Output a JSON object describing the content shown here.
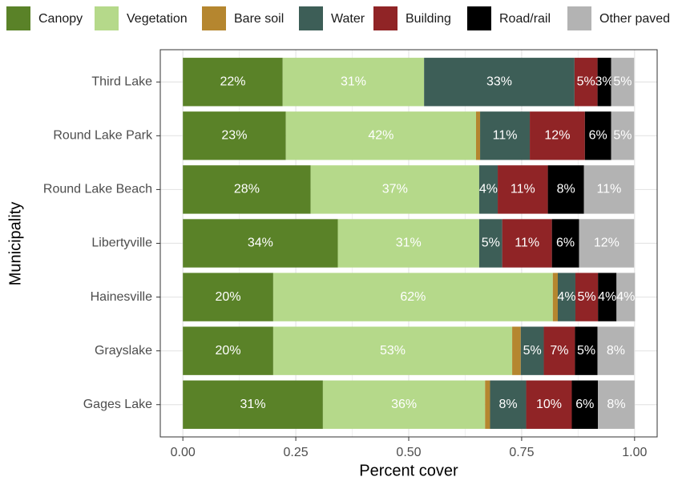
{
  "chart_data": {
    "type": "stacked-bar-horizontal",
    "y_label": "Municipality",
    "x_label": "Percent cover",
    "categories": [
      "Third Lake",
      "Round Lake Park",
      "Round Lake Beach",
      "Libertyville",
      "Hainesville",
      "Grayslake",
      "Gages Lake"
    ],
    "series": [
      {
        "name": "Canopy",
        "color": "#5a8228",
        "values": [
          0.221,
          0.228,
          0.283,
          0.343,
          0.2,
          0.2,
          0.31
        ],
        "value_labels": [
          "22%",
          "23%",
          "28%",
          "34%",
          "20%",
          "20%",
          "31%"
        ]
      },
      {
        "name": "Vegetation",
        "color": "#b5d98a",
        "values": [
          0.313,
          0.421,
          0.373,
          0.313,
          0.619,
          0.529,
          0.359
        ],
        "value_labels": [
          "31%",
          "42%",
          "37%",
          "31%",
          "62%",
          "53%",
          "36%"
        ]
      },
      {
        "name": "Bare soil",
        "color": "#b5862f",
        "values": [
          0,
          0.009,
          0,
          0,
          0.011,
          0.019,
          0.011
        ],
        "value_labels": [
          null,
          null,
          null,
          null,
          null,
          null,
          null
        ]
      },
      {
        "name": "Water",
        "color": "#3d5e57",
        "values": [
          0.333,
          0.11,
          0.041,
          0.051,
          0.039,
          0.051,
          0.08
        ],
        "value_labels": [
          "33%",
          "11%",
          "4%",
          "5%",
          "4%",
          "5%",
          "8%"
        ]
      },
      {
        "name": "Building",
        "color": "#902426",
        "values": [
          0.051,
          0.122,
          0.111,
          0.11,
          0.05,
          0.069,
          0.101
        ],
        "value_labels": [
          "5%",
          "12%",
          "11%",
          "11%",
          "5%",
          "7%",
          "10%"
        ]
      },
      {
        "name": "Road/rail",
        "color": "#000000",
        "values": [
          0.03,
          0.058,
          0.08,
          0.06,
          0.041,
          0.05,
          0.058
        ],
        "value_labels": [
          "3%",
          "6%",
          "8%",
          "6%",
          "4%",
          "5%",
          "6%"
        ]
      },
      {
        "name": "Other paved",
        "color": "#b3b3b3",
        "values": [
          0.051,
          0.051,
          0.111,
          0.122,
          0.041,
          0.081,
          0.081
        ],
        "value_labels": [
          "5%",
          "5%",
          "11%",
          "12%",
          "4%",
          "8%",
          "8%"
        ]
      }
    ],
    "xlim": [
      -0.05,
      1.05
    ],
    "xticks": [
      {
        "value": 0,
        "label": "0.00"
      },
      {
        "value": 0.25,
        "label": "0.25"
      },
      {
        "value": 0.5,
        "label": "0.50"
      },
      {
        "value": 0.75,
        "label": "0.75"
      },
      {
        "value": 1,
        "label": "1.00"
      }
    ],
    "grid": true,
    "legend_position": "top"
  }
}
